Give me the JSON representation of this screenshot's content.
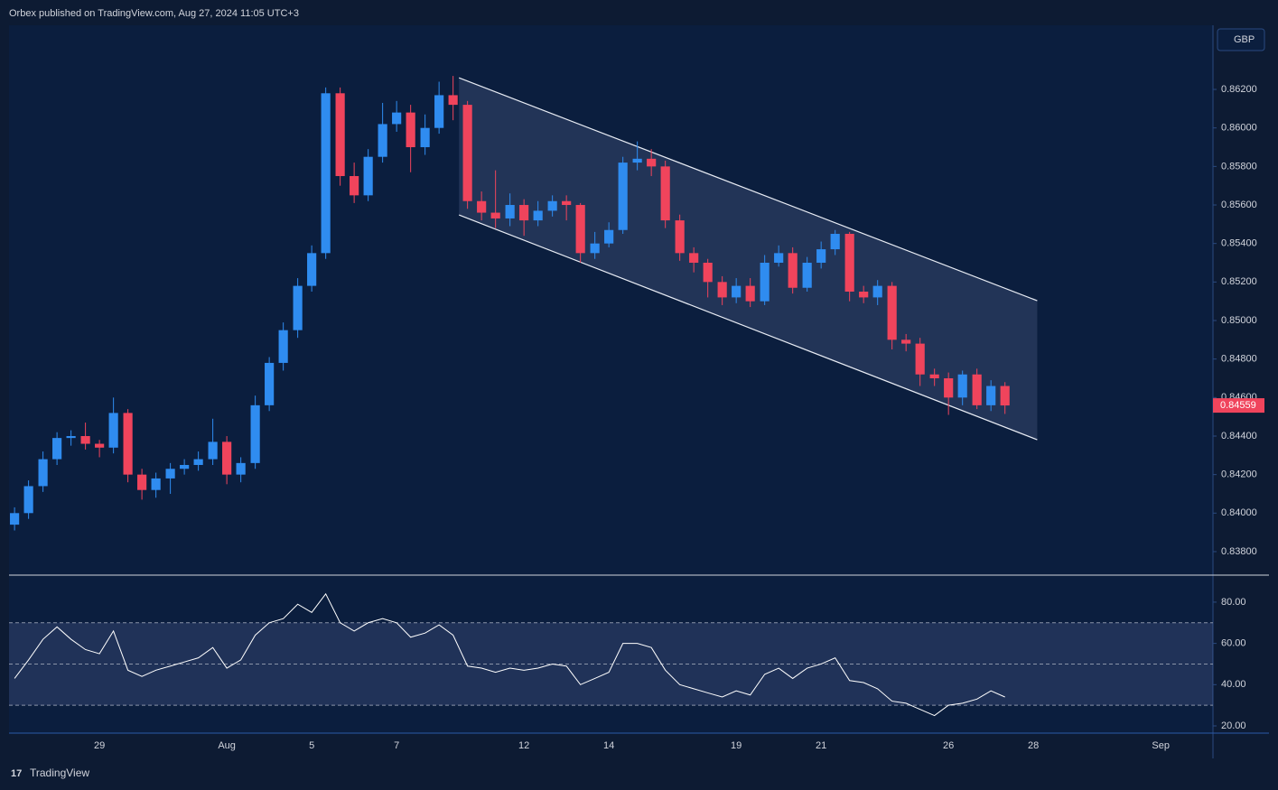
{
  "header": {
    "text": "Orbex published on TradingView.com, Aug 27, 2024 11:05 UTC+3"
  },
  "currency": "GBP",
  "footer": {
    "brand": "TradingView"
  },
  "chart_data": [
    {
      "type": "candlestick",
      "up_color": "#2f8cf0",
      "down_color": "#f0445c",
      "xlim": [
        -2.13,
        26.23
      ],
      "xticks": [
        {
          "value": 0,
          "label": "29"
        },
        {
          "value": 3,
          "label": "Aug"
        },
        {
          "value": 5,
          "label": "5"
        },
        {
          "value": 7,
          "label": "7"
        },
        {
          "value": 10,
          "label": "12"
        },
        {
          "value": 12,
          "label": "14"
        },
        {
          "value": 15,
          "label": "19"
        },
        {
          "value": 17,
          "label": "21"
        },
        {
          "value": 20,
          "label": "26"
        },
        {
          "value": 22,
          "label": "28"
        },
        {
          "value": 25,
          "label": "Sep"
        }
      ],
      "ylim": [
        0.83678,
        0.86533
      ],
      "yticks": [
        {
          "value": 0.838,
          "label": "0.83800"
        },
        {
          "value": 0.84,
          "label": "0.84000"
        },
        {
          "value": 0.842,
          "label": "0.84200"
        },
        {
          "value": 0.844,
          "label": "0.84400"
        },
        {
          "value": 0.846,
          "label": "0.84600"
        },
        {
          "value": 0.848,
          "label": "0.84800"
        },
        {
          "value": 0.85,
          "label": "0.85000"
        },
        {
          "value": 0.852,
          "label": "0.85200"
        },
        {
          "value": 0.854,
          "label": "0.85400"
        },
        {
          "value": 0.856,
          "label": "0.85600"
        },
        {
          "value": 0.858,
          "label": "0.85800"
        },
        {
          "value": 0.86,
          "label": "0.86000"
        },
        {
          "value": 0.862,
          "label": "0.86200"
        }
      ],
      "x": [
        -2,
        -1.67,
        -1.33,
        -1,
        -0.67,
        -0.33,
        0,
        0.33,
        0.67,
        1,
        1.33,
        1.67,
        2,
        2.33,
        2.67,
        3,
        3.33,
        3.67,
        4,
        4.33,
        4.67,
        5,
        5.33,
        5.67,
        6,
        6.33,
        6.67,
        7,
        7.33,
        7.67,
        8,
        8.33,
        8.67,
        9,
        9.33,
        9.67,
        10,
        10.33,
        10.67,
        11,
        11.33,
        11.67,
        12,
        12.33,
        12.67,
        13,
        13.33,
        13.67,
        14,
        14.33,
        14.67,
        15,
        15.33,
        15.67,
        16,
        16.33,
        16.67,
        17,
        17.33,
        17.67,
        18,
        18.33,
        18.67,
        19,
        19.33,
        19.67,
        20,
        20.33,
        20.67,
        21,
        21.33
      ],
      "open": [
        0.8394,
        0.84,
        0.8414,
        0.8428,
        0.8439,
        0.844,
        0.8436,
        0.8434,
        0.8452,
        0.842,
        0.8412,
        0.8418,
        0.8423,
        0.8425,
        0.8428,
        0.8437,
        0.842,
        0.8426,
        0.8456,
        0.8478,
        0.8495,
        0.8518,
        0.8535,
        0.8618,
        0.8575,
        0.8565,
        0.8585,
        0.8602,
        0.8608,
        0.859,
        0.86,
        0.8617,
        0.8612,
        0.8562,
        0.8556,
        0.8553,
        0.856,
        0.8552,
        0.8557,
        0.8562,
        0.856,
        0.8535,
        0.854,
        0.8547,
        0.8582,
        0.8584,
        0.858,
        0.8552,
        0.8535,
        0.853,
        0.852,
        0.8512,
        0.8518,
        0.851,
        0.853,
        0.8535,
        0.8517,
        0.853,
        0.8537,
        0.8545,
        0.8515,
        0.8512,
        0.8518,
        0.849,
        0.8488,
        0.8472,
        0.847,
        0.846,
        0.8472,
        0.8456,
        0.8466
      ],
      "high": [
        0.8403,
        0.8417,
        0.8432,
        0.8442,
        0.8443,
        0.8447,
        0.8438,
        0.846,
        0.8454,
        0.8423,
        0.8421,
        0.8426,
        0.8428,
        0.8432,
        0.8449,
        0.844,
        0.8429,
        0.8461,
        0.8481,
        0.8499,
        0.8522,
        0.8539,
        0.8621,
        0.8621,
        0.8582,
        0.8589,
        0.8613,
        0.8614,
        0.8612,
        0.8607,
        0.8624,
        0.8627,
        0.8614,
        0.8567,
        0.8578,
        0.8566,
        0.8563,
        0.8562,
        0.8565,
        0.8565,
        0.8561,
        0.8546,
        0.8551,
        0.8585,
        0.8593,
        0.8589,
        0.8583,
        0.8555,
        0.8538,
        0.8532,
        0.8523,
        0.8522,
        0.8522,
        0.8534,
        0.8539,
        0.8538,
        0.8533,
        0.8541,
        0.8547,
        0.8546,
        0.8518,
        0.8521,
        0.852,
        0.8493,
        0.8491,
        0.8475,
        0.8473,
        0.8474,
        0.8475,
        0.8469,
        0.8468
      ],
      "low": [
        0.8391,
        0.8397,
        0.8411,
        0.8425,
        0.8435,
        0.8433,
        0.8429,
        0.8431,
        0.8416,
        0.8407,
        0.8408,
        0.841,
        0.842,
        0.8422,
        0.8425,
        0.8415,
        0.8416,
        0.8423,
        0.8453,
        0.8474,
        0.8491,
        0.8515,
        0.8532,
        0.857,
        0.8561,
        0.8562,
        0.8582,
        0.8598,
        0.8577,
        0.8586,
        0.8597,
        0.8604,
        0.8558,
        0.8552,
        0.8548,
        0.8549,
        0.8544,
        0.8549,
        0.8554,
        0.8552,
        0.853,
        0.8532,
        0.8538,
        0.8545,
        0.8578,
        0.8575,
        0.8548,
        0.8531,
        0.8525,
        0.8512,
        0.8508,
        0.8509,
        0.8507,
        0.8508,
        0.8528,
        0.8514,
        0.8515,
        0.8527,
        0.8534,
        0.851,
        0.8509,
        0.8508,
        0.8485,
        0.8484,
        0.8466,
        0.8466,
        0.8451,
        0.8456,
        0.8454,
        0.8453,
        0.84515
      ],
      "close": [
        0.84,
        0.8414,
        0.8428,
        0.8439,
        0.844,
        0.8436,
        0.8434,
        0.8452,
        0.842,
        0.8412,
        0.8418,
        0.8423,
        0.8425,
        0.8428,
        0.8437,
        0.842,
        0.8426,
        0.8456,
        0.8478,
        0.8495,
        0.8518,
        0.8535,
        0.8618,
        0.8575,
        0.8565,
        0.8585,
        0.8602,
        0.8608,
        0.859,
        0.86,
        0.8617,
        0.8612,
        0.8562,
        0.8556,
        0.8553,
        0.856,
        0.8552,
        0.8557,
        0.8562,
        0.856,
        0.8535,
        0.854,
        0.8547,
        0.8582,
        0.8584,
        0.858,
        0.8552,
        0.8535,
        0.853,
        0.852,
        0.8512,
        0.8518,
        0.851,
        0.853,
        0.8535,
        0.8517,
        0.853,
        0.8537,
        0.8545,
        0.8515,
        0.8512,
        0.8518,
        0.849,
        0.8488,
        0.8472,
        0.847,
        0.846,
        0.8472,
        0.8456,
        0.8466,
        0.84559
      ],
      "channel": {
        "x": [
          8.47,
          22.09
        ],
        "upper": [
          0.8626,
          0.85103
        ],
        "lower": [
          0.85548,
          0.84381
        ]
      }
    },
    {
      "type": "line",
      "color": "#ffffff",
      "ylim": [
        16.5,
        93.1
      ],
      "yticks": [
        {
          "value": 20,
          "label": "20.00"
        },
        {
          "value": 40,
          "label": "40.00"
        },
        {
          "value": 60,
          "label": "60.00"
        },
        {
          "value": 80,
          "label": "80.00"
        }
      ],
      "levels": [
        70,
        50,
        30
      ],
      "values": [
        43,
        52,
        62,
        68,
        62,
        57,
        55,
        66,
        47,
        44,
        47,
        49,
        51,
        53,
        58,
        48,
        52,
        64,
        70,
        72,
        79,
        75,
        84,
        70,
        66,
        70,
        72,
        70,
        63,
        65,
        69,
        64,
        49,
        48,
        46,
        48,
        47,
        48,
        50,
        49,
        40,
        43,
        46,
        60,
        60,
        58,
        47,
        40,
        38,
        36,
        34,
        37,
        35,
        45,
        48,
        43,
        48,
        50,
        53,
        42,
        41,
        38,
        32,
        31,
        28,
        25,
        30,
        31,
        33,
        37,
        34
      ]
    }
  ]
}
